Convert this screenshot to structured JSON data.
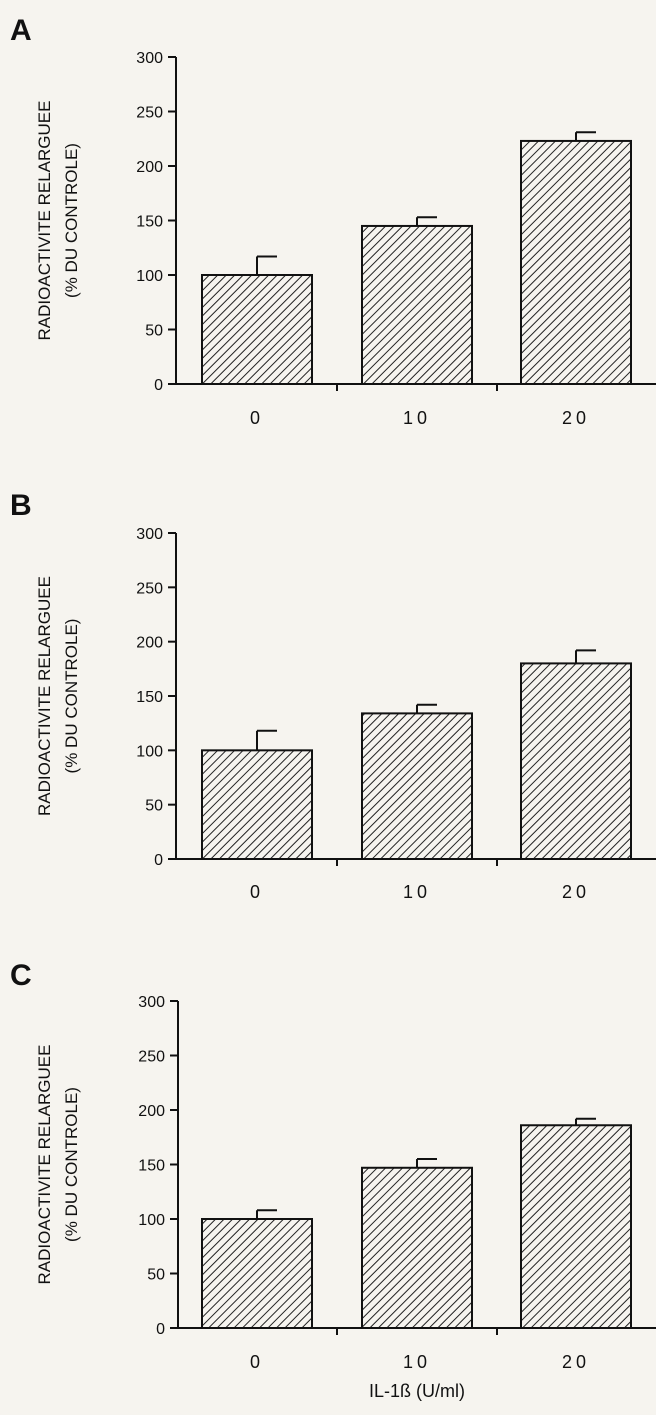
{
  "chart_data": [
    {
      "type": "bar",
      "panel_label": "A",
      "categories": [
        "0",
        "10",
        "20"
      ],
      "values": [
        100,
        145,
        223
      ],
      "errors": [
        17,
        8,
        8
      ],
      "ylabel_lines": [
        "RADIOACTIVITE RELARGUEE",
        "(% DU CONTROLE)"
      ],
      "xlabel": "",
      "yticks": [
        0,
        50,
        100,
        150,
        200,
        250,
        300
      ],
      "ylim": [
        0,
        300
      ],
      "grid": false,
      "bar_fill": "diagonal-hatch",
      "bar_color": "#111111"
    },
    {
      "type": "bar",
      "panel_label": "B",
      "categories": [
        "0",
        "10",
        "20"
      ],
      "values": [
        100,
        134,
        180
      ],
      "errors": [
        18,
        8,
        12
      ],
      "ylabel_lines": [
        "RADIOACTIVITE  RELARGUEE",
        "(% DU CONTROLE)"
      ],
      "xlabel": "",
      "yticks": [
        0,
        50,
        100,
        150,
        200,
        250,
        300
      ],
      "ylim": [
        0,
        300
      ],
      "grid": false,
      "bar_fill": "diagonal-hatch",
      "bar_color": "#111111"
    },
    {
      "type": "bar",
      "panel_label": "C",
      "categories": [
        "0",
        "10",
        "20"
      ],
      "values": [
        100,
        147,
        186
      ],
      "errors": [
        8,
        8,
        6
      ],
      "ylabel_lines": [
        "RADIOACTIVITE RELARGUEE",
        "(% DU CONTROLE)"
      ],
      "xlabel": "IL-1ß  (U/ml)",
      "yticks": [
        0,
        50,
        100,
        150,
        200,
        250,
        300
      ],
      "ylim": [
        0,
        300
      ],
      "grid": false,
      "bar_fill": "diagonal-hatch",
      "bar_color": "#111111"
    }
  ]
}
